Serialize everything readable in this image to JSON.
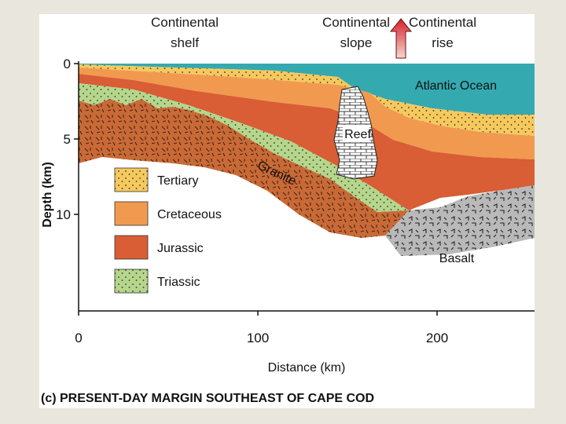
{
  "header": {
    "shelf": [
      "Continental",
      "shelf"
    ],
    "slope": [
      "Continental",
      "slope"
    ],
    "rise": [
      "Continental",
      "rise"
    ]
  },
  "axes": {
    "y_label": "Depth (km)",
    "y_ticks": [
      "0",
      "5",
      "10"
    ],
    "x_label": "Distance (km)",
    "x_ticks": [
      "0",
      "100",
      "200"
    ]
  },
  "features": {
    "ocean": "Atlantic Ocean",
    "granite": "Granite",
    "reef": "Reef",
    "basalt": "Basalt"
  },
  "legend": [
    {
      "label": "Tertiary",
      "color": "#f6c95d",
      "pattern": "dots"
    },
    {
      "label": "Cretaceous",
      "color": "#f19a4f",
      "pattern": "none"
    },
    {
      "label": "Jurassic",
      "color": "#d95d35",
      "pattern": "none"
    },
    {
      "label": "Triassic",
      "color": "#b5d68b",
      "pattern": "dots"
    }
  ],
  "caption": "(c) PRESENT-DAY MARGIN SOUTHEAST OF CAPE COD",
  "colors": {
    "ocean": "#34a9b0",
    "granite": "#c86a37",
    "basalt": "#b9b9b9",
    "arrow": "#d7202a"
  }
}
